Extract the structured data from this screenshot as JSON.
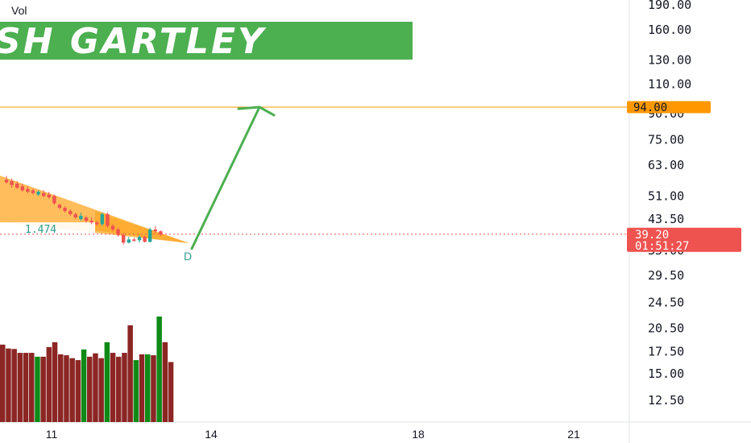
{
  "vol_label": "Vol",
  "banner": {
    "text": "SH GARTLEY",
    "color": "#4caf50"
  },
  "price_axis": {
    "ticks": [
      "190.00",
      "160.00",
      "130.00",
      "110.00",
      "90.00",
      "75.00",
      "63.00",
      "51.00",
      "43.50",
      "35.00",
      "29.50",
      "24.50",
      "20.50",
      "17.50",
      "15.00",
      "12.50"
    ],
    "scale": "log"
  },
  "level_line": {
    "price": 94.0,
    "label": "94.00",
    "color": "#ff9800"
  },
  "last_price": {
    "price": 39.2,
    "label": "39.20",
    "countdown": "01:51:27",
    "color": "#ef5350"
  },
  "time_axis": {
    "labels": [
      "11",
      "14",
      "18",
      "21"
    ]
  },
  "pattern": {
    "ratio_label": "1.474",
    "point_label": "D",
    "fill_color": "#ffa726"
  },
  "projection_arrow": {
    "from_price": 36.5,
    "to_price": 94.0,
    "color": "#4caf50"
  },
  "chart_data": {
    "type": "candlestick",
    "title": "",
    "y_scale": "log",
    "ylim": [
      11.5,
      195
    ],
    "candles": [
      {
        "o": 57.0,
        "h": 58.5,
        "l": 55.5,
        "c": 56.0,
        "v": 16
      },
      {
        "o": 56.5,
        "h": 57.5,
        "l": 54.0,
        "c": 55.0,
        "v": 15.2
      },
      {
        "o": 55.5,
        "h": 56.5,
        "l": 53.5,
        "c": 54.0,
        "v": 15.1
      },
      {
        "o": 54.5,
        "h": 55.5,
        "l": 52.5,
        "c": 53.0,
        "v": 14.3
      },
      {
        "o": 53.5,
        "h": 54.5,
        "l": 52.0,
        "c": 52.5,
        "v": 14.3
      },
      {
        "o": 53.0,
        "h": 53.5,
        "l": 51.5,
        "c": 52.0,
        "v": 14.3
      },
      {
        "o": 51.5,
        "h": 53.0,
        "l": 51.0,
        "c": 52.5,
        "v": 13.5
      },
      {
        "o": 52.0,
        "h": 53.0,
        "l": 50.5,
        "c": 51.0,
        "v": 13.5
      },
      {
        "o": 51.5,
        "h": 52.5,
        "l": 50.0,
        "c": 50.5,
        "v": 15.5
      },
      {
        "o": 51.0,
        "h": 51.5,
        "l": 48.0,
        "c": 48.5,
        "v": 16.5
      },
      {
        "o": 48.0,
        "h": 48.5,
        "l": 46.5,
        "c": 47.0,
        "v": 14.0
      },
      {
        "o": 47.0,
        "h": 47.5,
        "l": 45.5,
        "c": 46.0,
        "v": 13.8
      },
      {
        "o": 46.0,
        "h": 46.5,
        "l": 44.5,
        "c": 45.0,
        "v": 13.2
      },
      {
        "o": 45.0,
        "h": 45.5,
        "l": 43.5,
        "c": 44.0,
        "v": 12.8
      },
      {
        "o": 43.5,
        "h": 45.5,
        "l": 43.0,
        "c": 44.5,
        "v": 15.0
      },
      {
        "o": 44.0,
        "h": 44.5,
        "l": 42.5,
        "c": 43.0,
        "v": 13.5
      },
      {
        "o": 43.0,
        "h": 44.0,
        "l": 42.0,
        "c": 42.5,
        "v": 14.2
      },
      {
        "o": 42.5,
        "h": 43.0,
        "l": 41.5,
        "c": 42.0,
        "v": 13.2
      },
      {
        "o": 42.0,
        "h": 45.5,
        "l": 41.5,
        "c": 45.0,
        "v": 16.5
      },
      {
        "o": 45.0,
        "h": 45.5,
        "l": 41.0,
        "c": 41.5,
        "v": 14.3
      },
      {
        "o": 41.5,
        "h": 42.0,
        "l": 40.0,
        "c": 40.5,
        "v": 13.5
      },
      {
        "o": 40.5,
        "h": 41.0,
        "l": 38.5,
        "c": 39.0,
        "v": 14.3
      },
      {
        "o": 39.0,
        "h": 39.5,
        "l": 36.5,
        "c": 37.0,
        "v": 20.0
      },
      {
        "o": 37.0,
        "h": 38.5,
        "l": 36.8,
        "c": 37.8,
        "v": 12.8
      },
      {
        "o": 37.8,
        "h": 38.2,
        "l": 37.2,
        "c": 37.6,
        "v": 14.0
      },
      {
        "o": 37.6,
        "h": 39.0,
        "l": 37.0,
        "c": 38.5,
        "v": 14.0
      },
      {
        "o": 38.5,
        "h": 38.8,
        "l": 37.0,
        "c": 37.2,
        "v": 13.8
      },
      {
        "o": 37.2,
        "h": 41.0,
        "l": 37.0,
        "c": 40.5,
        "v": 21.8
      },
      {
        "o": 40.5,
        "h": 41.5,
        "l": 39.5,
        "c": 40.0,
        "v": 16.5
      },
      {
        "o": 40.0,
        "h": 40.2,
        "l": 38.8,
        "c": 39.2,
        "v": 12.4
      }
    ]
  }
}
